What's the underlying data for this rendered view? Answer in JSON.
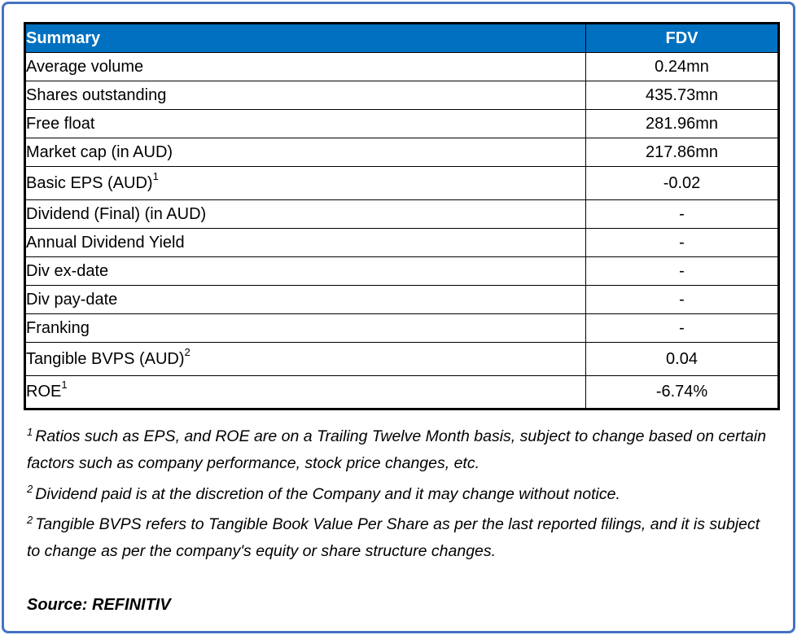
{
  "colors": {
    "header_bg": "#0070C0",
    "header_text": "#FFFFFF",
    "frame_border": "#4472C4",
    "table_border": "#000000"
  },
  "table": {
    "header": {
      "label": "Summary",
      "value": "FDV"
    },
    "rows": [
      {
        "label": "Average volume",
        "sup": "",
        "value": "0.24mn"
      },
      {
        "label": "Shares outstanding",
        "sup": "",
        "value": "435.73mn"
      },
      {
        "label": "Free float",
        "sup": "",
        "value": "281.96mn"
      },
      {
        "label": "Market cap (in AUD)",
        "sup": "",
        "value": "217.86mn"
      },
      {
        "label": "Basic EPS (AUD)",
        "sup": "1",
        "value": "-0.02"
      },
      {
        "label": "Dividend (Final) (in AUD)",
        "sup": "",
        "value": "-"
      },
      {
        "label": "Annual Dividend Yield",
        "sup": "",
        "value": "-"
      },
      {
        "label": "Div ex-date",
        "sup": "",
        "value": "-"
      },
      {
        "label": "Div pay-date",
        "sup": "",
        "value": "-"
      },
      {
        "label": "Franking",
        "sup": "",
        "value": "-"
      },
      {
        "label": "Tangible BVPS (AUD)",
        "sup": "2",
        "value": "0.04"
      },
      {
        "label": "ROE",
        "sup": "1",
        "value": "-6.74%"
      }
    ]
  },
  "footnotes": [
    {
      "sup": "1",
      "text": "Ratios such as EPS,  and ROE are on a Trailing Twelve Month basis, subject to change based on certain factors such as company performance, stock price changes, etc."
    },
    {
      "sup": "2",
      "text": "Dividend paid is at the discretion of the Company and it may change without notice."
    },
    {
      "sup": "2",
      "text": "Tangible BVPS refers to Tangible Book Value Per Share as per the last reported filings, and it is subject to change as per the company's equity or share structure changes."
    }
  ],
  "source": "Source: REFINITIV"
}
